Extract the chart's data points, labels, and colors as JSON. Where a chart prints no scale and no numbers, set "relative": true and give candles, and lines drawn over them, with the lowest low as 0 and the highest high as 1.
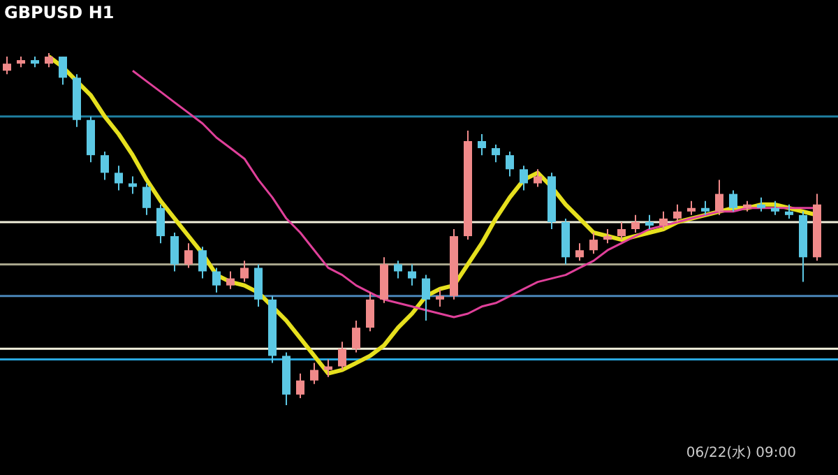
{
  "chart_data": {
    "type": "candlestick",
    "relative": true,
    "title": "GBPUSD H1",
    "annotations": [
      "06/22(水) 09:00"
    ],
    "categories": [
      null,
      null,
      null,
      null,
      null,
      null,
      null,
      null,
      null,
      null,
      null,
      null,
      null,
      null,
      null,
      null,
      null,
      null,
      null,
      null,
      null,
      null,
      null,
      null,
      null,
      null,
      null,
      null,
      null,
      null,
      null,
      null,
      null,
      null,
      null,
      null,
      null,
      null,
      null,
      null,
      null,
      null,
      null,
      null,
      null,
      null,
      null,
      null,
      null,
      null,
      null,
      null,
      null,
      null,
      null,
      null,
      null,
      null,
      null
    ],
    "ohlc": [
      [
        0.95,
        0.99,
        0.94,
        0.97
      ],
      [
        0.97,
        0.99,
        0.96,
        0.98
      ],
      [
        0.98,
        0.99,
        0.96,
        0.97
      ],
      [
        0.97,
        1.0,
        0.96,
        0.99
      ],
      [
        0.99,
        0.99,
        0.91,
        0.93
      ],
      [
        0.93,
        0.94,
        0.79,
        0.81
      ],
      [
        0.81,
        0.82,
        0.69,
        0.71
      ],
      [
        0.71,
        0.72,
        0.64,
        0.66
      ],
      [
        0.66,
        0.68,
        0.61,
        0.63
      ],
      [
        0.63,
        0.65,
        0.6,
        0.62
      ],
      [
        0.62,
        0.63,
        0.54,
        0.56
      ],
      [
        0.56,
        0.57,
        0.46,
        0.48
      ],
      [
        0.48,
        0.49,
        0.38,
        0.4
      ],
      [
        0.4,
        0.46,
        0.39,
        0.44
      ],
      [
        0.44,
        0.45,
        0.36,
        0.38
      ],
      [
        0.38,
        0.39,
        0.32,
        0.34
      ],
      [
        0.34,
        0.38,
        0.33,
        0.36
      ],
      [
        0.36,
        0.41,
        0.35,
        0.39
      ],
      [
        0.39,
        0.4,
        0.28,
        0.3
      ],
      [
        0.3,
        0.31,
        0.12,
        0.14
      ],
      [
        0.14,
        0.15,
        0.0,
        0.03
      ],
      [
        0.03,
        0.09,
        0.02,
        0.07
      ],
      [
        0.07,
        0.12,
        0.06,
        0.1
      ],
      [
        0.1,
        0.13,
        0.08,
        0.11
      ],
      [
        0.11,
        0.18,
        0.1,
        0.16
      ],
      [
        0.16,
        0.24,
        0.15,
        0.22
      ],
      [
        0.22,
        0.32,
        0.21,
        0.3
      ],
      [
        0.3,
        0.42,
        0.29,
        0.4
      ],
      [
        0.4,
        0.41,
        0.36,
        0.38
      ],
      [
        0.38,
        0.4,
        0.34,
        0.36
      ],
      [
        0.36,
        0.37,
        0.24,
        0.3
      ],
      [
        0.3,
        0.33,
        0.28,
        0.31
      ],
      [
        0.31,
        0.5,
        0.3,
        0.48
      ],
      [
        0.48,
        0.78,
        0.47,
        0.75
      ],
      [
        0.75,
        0.77,
        0.71,
        0.73
      ],
      [
        0.73,
        0.74,
        0.69,
        0.71
      ],
      [
        0.71,
        0.72,
        0.65,
        0.67
      ],
      [
        0.67,
        0.68,
        0.61,
        0.63
      ],
      [
        0.63,
        0.67,
        0.62,
        0.65
      ],
      [
        0.65,
        0.66,
        0.5,
        0.52
      ],
      [
        0.52,
        0.53,
        0.4,
        0.42
      ],
      [
        0.42,
        0.46,
        0.41,
        0.44
      ],
      [
        0.44,
        0.49,
        0.43,
        0.47
      ],
      [
        0.47,
        0.5,
        0.46,
        0.48
      ],
      [
        0.48,
        0.52,
        0.47,
        0.5
      ],
      [
        0.5,
        0.54,
        0.49,
        0.52
      ],
      [
        0.52,
        0.54,
        0.5,
        0.51
      ],
      [
        0.51,
        0.55,
        0.5,
        0.53
      ],
      [
        0.53,
        0.57,
        0.52,
        0.55
      ],
      [
        0.55,
        0.58,
        0.54,
        0.56
      ],
      [
        0.56,
        0.58,
        0.54,
        0.55
      ],
      [
        0.55,
        0.64,
        0.54,
        0.6
      ],
      [
        0.6,
        0.61,
        0.55,
        0.56
      ],
      [
        0.56,
        0.58,
        0.55,
        0.57
      ],
      [
        0.57,
        0.59,
        0.55,
        0.56
      ],
      [
        0.56,
        0.58,
        0.54,
        0.55
      ],
      [
        0.55,
        0.57,
        0.53,
        0.54
      ],
      [
        0.54,
        0.55,
        0.35,
        0.42
      ],
      [
        0.42,
        0.6,
        0.41,
        0.57
      ]
    ],
    "series": [
      {
        "type": "line",
        "color": "#e6e01e",
        "values": [
          null,
          null,
          null,
          0.99,
          0.96,
          0.92,
          0.88,
          0.82,
          0.77,
          0.71,
          0.64,
          0.58,
          0.53,
          0.48,
          0.43,
          0.37,
          0.35,
          0.34,
          0.32,
          0.28,
          0.24,
          0.19,
          0.14,
          0.09,
          0.1,
          0.12,
          0.14,
          0.17,
          0.22,
          0.26,
          0.31,
          0.33,
          0.34,
          0.4,
          0.46,
          0.53,
          0.59,
          0.64,
          0.66,
          0.62,
          0.57,
          0.53,
          0.49,
          0.48,
          0.47,
          0.48,
          0.49,
          0.5,
          0.52,
          0.53,
          0.54,
          0.55,
          0.56,
          0.56,
          0.57,
          0.57,
          0.56,
          0.55,
          0.54
        ]
      },
      {
        "type": "line",
        "color": "#e0409a",
        "values": [
          null,
          null,
          null,
          null,
          null,
          null,
          null,
          null,
          null,
          0.95,
          0.92,
          0.89,
          0.86,
          0.83,
          0.8,
          0.76,
          0.73,
          0.7,
          0.64,
          0.59,
          0.53,
          0.49,
          0.44,
          0.39,
          0.37,
          0.34,
          0.32,
          0.3,
          0.29,
          0.28,
          0.27,
          0.26,
          0.25,
          0.26,
          0.28,
          0.29,
          0.31,
          0.33,
          0.35,
          0.36,
          0.37,
          0.39,
          0.41,
          0.44,
          0.46,
          0.48,
          0.5,
          0.51,
          0.52,
          0.53,
          0.54,
          0.55,
          0.55,
          0.56,
          0.56,
          0.56,
          0.56,
          0.56,
          0.56
        ]
      }
    ],
    "ref_lines": [
      {
        "axis": "y",
        "value": 0.82,
        "color": "#1f7fa0"
      },
      {
        "axis": "y",
        "value": 0.52,
        "color": "#f2f0dc"
      },
      {
        "axis": "y",
        "value": 0.4,
        "color": "#a8a58c"
      },
      {
        "axis": "y",
        "value": 0.31,
        "color": "#4a86b8"
      },
      {
        "axis": "y",
        "value": 0.16,
        "color": "#f2f0dc"
      },
      {
        "axis": "y",
        "value": 0.13,
        "color": "#2aa8e0"
      }
    ]
  }
}
